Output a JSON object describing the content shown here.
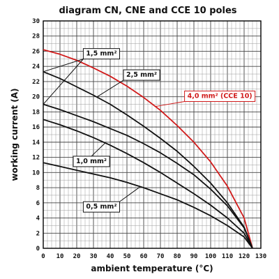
{
  "chart_data": {
    "type": "line",
    "title": "diagram CN, CNE and CCE 10 poles",
    "xlabel": "ambient temperature (°C)",
    "ylabel": "working current (A)",
    "xlim": [
      0,
      130
    ],
    "ylim": [
      0,
      30
    ],
    "x_ticks": [
      "0",
      "10",
      "20",
      "30",
      "40",
      "50",
      "60",
      "70",
      "80",
      "90",
      "100",
      "110",
      "120",
      "130"
    ],
    "y_ticks": [
      "0",
      "2",
      "4",
      "6",
      "8",
      "10",
      "12",
      "14",
      "16",
      "18",
      "20",
      "22",
      "24",
      "26",
      "28",
      "30"
    ],
    "grid": true,
    "legend_position": "none",
    "series": [
      {
        "name": "4,0 mm² (CCE 10)",
        "color": "#d11a1a",
        "x": [
          0,
          10,
          20,
          30,
          40,
          50,
          60,
          70,
          80,
          90,
          100,
          110,
          120,
          125
        ],
        "y": [
          26.2,
          25.6,
          24.8,
          23.8,
          22.7,
          21.4,
          19.9,
          18.2,
          16.2,
          14.0,
          11.4,
          8.2,
          4.0,
          0
        ]
      },
      {
        "name": "2,5 mm²",
        "color": "#111111",
        "x": [
          0,
          10,
          20,
          30,
          40,
          50,
          60,
          70,
          80,
          90,
          100,
          110,
          120,
          125
        ],
        "y": [
          23.3,
          22.4,
          21.3,
          20.2,
          19.0,
          17.6,
          16.1,
          14.5,
          12.8,
          10.8,
          8.6,
          6.0,
          2.8,
          0
        ]
      },
      {
        "name": "1,5 mm²",
        "color": "#111111",
        "x": [
          0,
          10,
          20,
          30,
          40,
          50,
          60,
          70,
          80,
          90,
          100,
          110,
          120,
          125
        ],
        "y": [
          19.0,
          18.3,
          17.5,
          16.7,
          15.8,
          14.9,
          13.8,
          12.6,
          11.2,
          9.7,
          7.8,
          5.6,
          2.7,
          0
        ]
      },
      {
        "name": "1,0 mm²",
        "color": "#111111",
        "x": [
          0,
          10,
          20,
          30,
          40,
          50,
          60,
          70,
          80,
          90,
          100,
          110,
          120,
          125
        ],
        "y": [
          17.0,
          16.3,
          15.5,
          14.6,
          13.6,
          12.5,
          11.3,
          10.0,
          8.6,
          7.2,
          5.7,
          4.0,
          2.0,
          0
        ]
      },
      {
        "name": "0,5 mm²",
        "color": "#111111",
        "x": [
          0,
          10,
          20,
          30,
          40,
          50,
          60,
          70,
          80,
          90,
          100,
          110,
          120,
          125
        ],
        "y": [
          11.3,
          10.8,
          10.3,
          9.8,
          9.3,
          8.7,
          8.0,
          7.2,
          6.4,
          5.4,
          4.3,
          3.0,
          1.5,
          0
        ]
      }
    ],
    "labels": [
      {
        "text": "1,5 mm²",
        "series": "1,5 mm²"
      },
      {
        "text": "2,5 mm²",
        "series": "2,5 mm²"
      },
      {
        "text": "4,0 mm² (CCE 10)",
        "series": "4,0 mm² (CCE 10)"
      },
      {
        "text": "1,0 mm²",
        "series": "1,0 mm²"
      },
      {
        "text": "0,5 mm²",
        "series": "0,5 mm²"
      }
    ]
  }
}
